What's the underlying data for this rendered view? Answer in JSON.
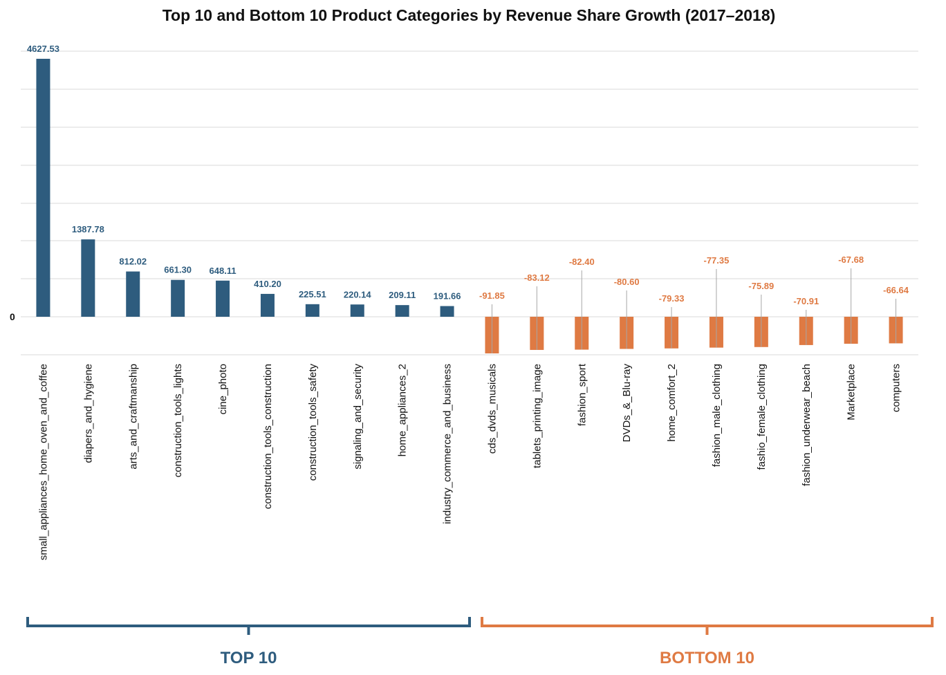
{
  "chart_data": {
    "type": "bar",
    "title": "Top 10 and Bottom 10 Product Categories by Revenue Share Growth (2017–2018)",
    "zero_label": "0",
    "categories": [
      "small_appliances_home_oven_and_coffee",
      "diapers_and_hygiene",
      "arts_and_craftmanship",
      "construction_tools_lights",
      "cine_photo",
      "construction_tools_construction",
      "construction_tools_safety",
      "signaling_and_security",
      "home_appliances_2",
      "industry_commerce_and_business",
      "cds_dvds_musicals",
      "tablets_printing_image",
      "fashion_sport",
      "DVDs_&_Blu-ray",
      "home_comfort_2",
      "fashion_male_clothing",
      "fashio_female_clothing",
      "fashion_underwear_beach",
      "Marketplace",
      "computers"
    ],
    "values": [
      4627.53,
      1387.78,
      812.02,
      661.3,
      648.11,
      410.2,
      225.51,
      220.14,
      209.11,
      191.66,
      -91.85,
      -83.12,
      -82.4,
      -80.6,
      -79.33,
      -77.35,
      -75.89,
      -70.91,
      -67.68,
      -66.64
    ],
    "value_labels": [
      "4627.53",
      "1387.78",
      "812.02",
      "661.30",
      "648.11",
      "410.20",
      "225.51",
      "220.14",
      "209.11",
      "191.66",
      "-91.85",
      "-83.12",
      "-82.40",
      "-80.60",
      "-79.33",
      "-77.35",
      "-75.89",
      "-70.91",
      "-67.68",
      "-66.64"
    ],
    "groups": [
      {
        "label": "TOP 10",
        "color": "#2e5c7e"
      },
      {
        "label": "BOTTOM 10",
        "color": "#df7a43"
      }
    ],
    "grid": true
  }
}
